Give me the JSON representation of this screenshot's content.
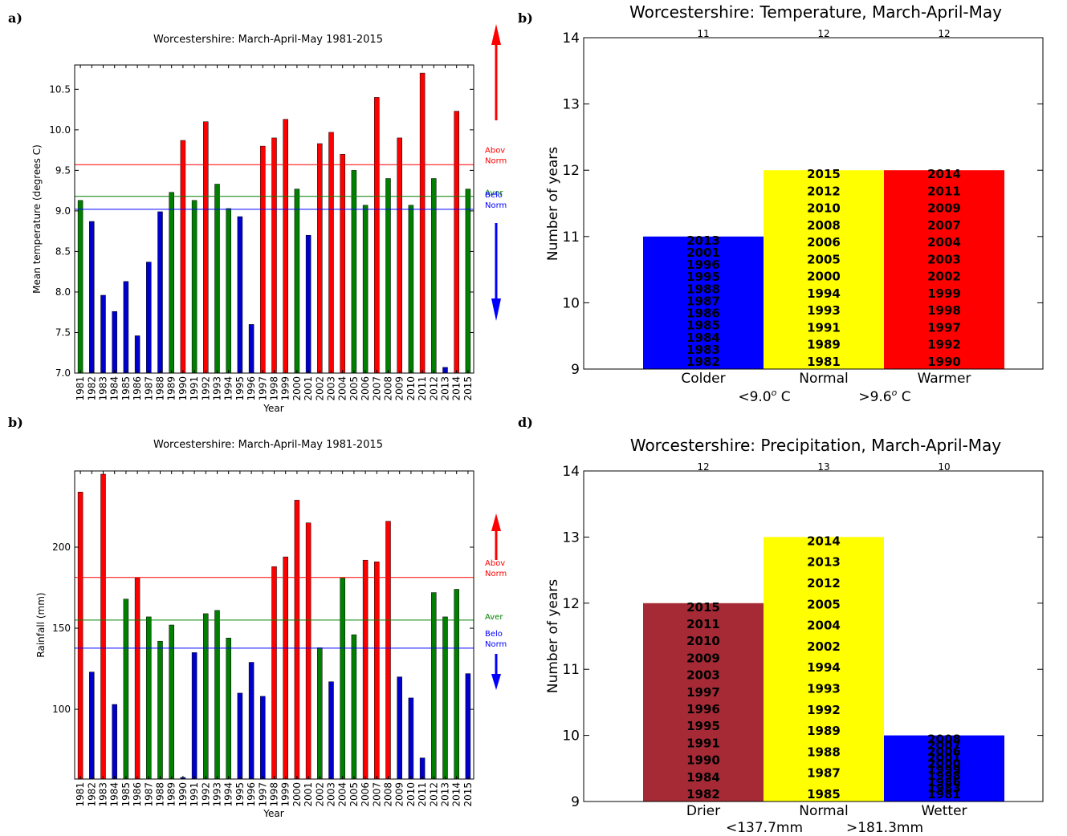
{
  "panel_labels": {
    "a": "a)",
    "b1": "b)",
    "b2": "b)",
    "d": "d)"
  },
  "colors": {
    "red": "#ff0000",
    "green": "#007f00",
    "blue": "#0000cc",
    "yellow": "#ffff00",
    "brown": "#a52a35",
    "blue_bar": "#0000ff"
  },
  "chart_data": [
    {
      "type": "bar",
      "id": "temp-bars",
      "title": "Worcestershire: March-April-May 1981-2015",
      "xlabel": "Year",
      "ylabel": "Mean temperature (degrees C)",
      "ylim": [
        7.0,
        10.8
      ],
      "yticks": [
        7.0,
        7.5,
        8.0,
        8.5,
        9.0,
        9.5,
        10.0,
        10.5
      ],
      "ytick_labels": [
        "7.0",
        "7.5",
        "8.0",
        "8.5",
        "9.0",
        "9.5",
        "10.0",
        "10.5"
      ],
      "categories": [
        "1981",
        "1982",
        "1983",
        "1984",
        "1985",
        "1986",
        "1987",
        "1988",
        "1989",
        "1990",
        "1991",
        "1992",
        "1993",
        "1994",
        "1995",
        "1996",
        "1997",
        "1998",
        "1999",
        "2000",
        "2001",
        "2002",
        "2003",
        "2004",
        "2005",
        "2006",
        "2007",
        "2008",
        "2009",
        "2010",
        "2011",
        "2012",
        "2013",
        "2014",
        "2015"
      ],
      "values": [
        9.13,
        8.87,
        7.96,
        7.76,
        8.13,
        7.46,
        8.37,
        8.99,
        9.23,
        9.87,
        9.13,
        10.1,
        9.33,
        9.03,
        8.93,
        7.6,
        9.8,
        9.9,
        10.13,
        9.27,
        8.7,
        9.83,
        9.97,
        9.7,
        9.5,
        9.07,
        10.4,
        9.4,
        9.9,
        9.07,
        10.7,
        9.4,
        7.07,
        10.23,
        9.27
      ],
      "bar_classes": [
        "normal",
        "below",
        "below",
        "below",
        "below",
        "below",
        "below",
        "below",
        "normal",
        "above",
        "normal",
        "above",
        "normal",
        "normal",
        "below",
        "below",
        "above",
        "above",
        "above",
        "normal",
        "below",
        "above",
        "above",
        "above",
        "normal",
        "normal",
        "above",
        "normal",
        "above",
        "normal",
        "above",
        "normal",
        "below",
        "above",
        "normal"
      ],
      "lines": [
        {
          "name": "Above Normal",
          "label": "Abov\nNorm",
          "value": 9.57,
          "color": "#ff0000"
        },
        {
          "name": "Average",
          "label": "Aver",
          "value": 9.18,
          "color": "#007f00"
        },
        {
          "name": "Below Normal",
          "label": "Belo\nNorm",
          "value": 9.02,
          "color": "#0000ff"
        }
      ],
      "legend_placement": "right",
      "grid": false
    },
    {
      "type": "bar",
      "id": "temp-counts",
      "title": "Worcestershire: Temperature, March-April-May",
      "ylabel": "Number of years",
      "ylim": [
        9,
        14
      ],
      "yticks": [
        9,
        10,
        11,
        12,
        13,
        14
      ],
      "categories": [
        "Colder",
        "Normal",
        "Warmer"
      ],
      "values": [
        11,
        12,
        12
      ],
      "count_labels": [
        "11",
        "12",
        "12"
      ],
      "thresholds": [
        "<9.0",
        ">9.6"
      ],
      "threshold_unit_sup": "o",
      "threshold_unit": " C",
      "colors": [
        "#0000ff",
        "#ffff00",
        "#ff0000"
      ],
      "years": [
        [
          "2013",
          "2001",
          "1996",
          "1995",
          "1988",
          "1987",
          "1986",
          "1985",
          "1984",
          "1983",
          "1982"
        ],
        [
          "2015",
          "2012",
          "2010",
          "2008",
          "2006",
          "2005",
          "2000",
          "1994",
          "1993",
          "1991",
          "1989",
          "1981"
        ],
        [
          "2014",
          "2011",
          "2009",
          "2007",
          "2004",
          "2003",
          "2002",
          "1999",
          "1998",
          "1997",
          "1992",
          "1990"
        ]
      ]
    },
    {
      "type": "bar",
      "id": "rain-bars",
      "title": "Worcestershire: March-April-May 1981-2015",
      "xlabel": "Year",
      "ylabel": "Rainfall (mm)",
      "ylim": [
        57,
        247
      ],
      "yticks": [
        100,
        150,
        200
      ],
      "ytick_labels": [
        "100",
        "150",
        "200"
      ],
      "categories": [
        "1981",
        "1982",
        "1983",
        "1984",
        "1985",
        "1986",
        "1987",
        "1988",
        "1989",
        "1990",
        "1991",
        "1992",
        "1993",
        "1994",
        "1995",
        "1996",
        "1997",
        "1998",
        "1999",
        "2000",
        "2001",
        "2002",
        "2003",
        "2004",
        "2005",
        "2006",
        "2007",
        "2008",
        "2009",
        "2010",
        "2011",
        "2012",
        "2013",
        "2014",
        "2015"
      ],
      "values": [
        234,
        123,
        245,
        103,
        168,
        181,
        157,
        142,
        152,
        58,
        135,
        159,
        161,
        144,
        110,
        129,
        108,
        188,
        194,
        229,
        215,
        138,
        117,
        181,
        146,
        192,
        191,
        216,
        120,
        107,
        70,
        172,
        157,
        174,
        122
      ],
      "bar_classes": [
        "above",
        "below",
        "above",
        "below",
        "normal",
        "above",
        "normal",
        "normal",
        "normal",
        "below",
        "below",
        "normal",
        "normal",
        "normal",
        "below",
        "below",
        "below",
        "above",
        "above",
        "above",
        "above",
        "normal",
        "below",
        "normal",
        "normal",
        "above",
        "above",
        "above",
        "below",
        "below",
        "below",
        "normal",
        "normal",
        "normal",
        "below"
      ],
      "lines": [
        {
          "name": "Above Normal",
          "label": "Abov\nNorm",
          "value": 181.3,
          "color": "#ff0000"
        },
        {
          "name": "Average",
          "label": "Aver",
          "value": 155,
          "color": "#007f00"
        },
        {
          "name": "Below Normal",
          "label": "Belo\nNorm",
          "value": 137.7,
          "color": "#0000ff"
        }
      ],
      "legend_placement": "right",
      "grid": false
    },
    {
      "type": "bar",
      "id": "rain-counts",
      "title": "Worcestershire: Precipitation, March-April-May",
      "ylabel": "Number of years",
      "ylim": [
        9,
        14
      ],
      "yticks": [
        9,
        10,
        11,
        12,
        13,
        14
      ],
      "categories": [
        "Drier",
        "Normal",
        "Wetter"
      ],
      "values": [
        12,
        13,
        10
      ],
      "count_labels": [
        "12",
        "13",
        "10"
      ],
      "thresholds": [
        "<137.7mm",
        ">181.3mm"
      ],
      "colors": [
        "#a52a35",
        "#ffff00",
        "#0000ff"
      ],
      "years": [
        [
          "2015",
          "2011",
          "2010",
          "2009",
          "2003",
          "1997",
          "1996",
          "1995",
          "1991",
          "1990",
          "1984",
          "1982"
        ],
        [
          "2014",
          "2013",
          "2012",
          "2005",
          "2004",
          "2002",
          "1994",
          "1993",
          "1992",
          "1989",
          "1988",
          "1987",
          "1985"
        ],
        [
          "2008",
          "2007",
          "2006",
          "2001",
          "2000",
          "1999",
          "1998",
          "1986",
          "1983",
          "1981"
        ]
      ]
    }
  ]
}
